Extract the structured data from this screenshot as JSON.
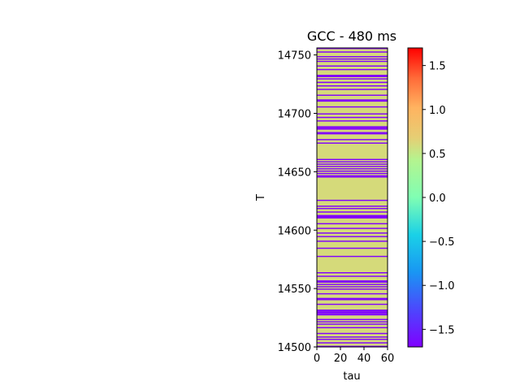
{
  "chart_data": {
    "type": "heatmap",
    "title": "GCC - 480 ms",
    "xlabel": "tau",
    "ylabel": "T",
    "xlim": [
      0,
      60
    ],
    "ylim": [
      14500,
      14756
    ],
    "x_ticks": [
      0,
      20,
      40,
      60
    ],
    "y_ticks": [
      14500,
      14550,
      14600,
      14650,
      14700,
      14750
    ],
    "x_tick_labels": [
      "0",
      "20",
      "40",
      "60"
    ],
    "y_tick_labels": [
      "14500",
      "14550",
      "14600",
      "14650",
      "14700",
      "14750"
    ],
    "colormap": "rainbow",
    "colorbar": {
      "range": [
        -1.7,
        1.7
      ],
      "ticks": [
        -1.5,
        -1.0,
        -0.5,
        0.0,
        0.5,
        1.0,
        1.5
      ],
      "tick_labels": [
        "−1.5",
        "−1.0",
        "−0.5",
        "0.0",
        "0.5",
        "1.0",
        "1.5"
      ]
    },
    "values_present": [
      0.57,
      -1.7
    ],
    "row_pattern_note": "each row T has a constant value across tau; rows are either about 0.57 (yellow-green) or -1.7 (purple)",
    "purple_rows": [
      14500,
      14503,
      14506,
      14508,
      14511,
      14516,
      14519,
      14521,
      14523,
      14527,
      14528,
      14529,
      14530,
      14531,
      14536,
      14540,
      14541,
      14545,
      14549,
      14551,
      14553,
      14555,
      14556,
      14560,
      14563,
      14577,
      14584,
      14590,
      14594,
      14597,
      14601,
      14605,
      14610,
      14611,
      14612,
      14615,
      14618,
      14620,
      14625,
      14645,
      14646,
      14648,
      14650,
      14652,
      14654,
      14656,
      14658,
      14660,
      14674,
      14677,
      14682,
      14683,
      14686,
      14687,
      14688,
      14693,
      14696,
      14699,
      14705,
      14710,
      14711,
      14715,
      14720,
      14723,
      14726,
      14729,
      14731,
      14732,
      14737,
      14740,
      14744,
      14746,
      14748,
      14752,
      14755
    ]
  }
}
